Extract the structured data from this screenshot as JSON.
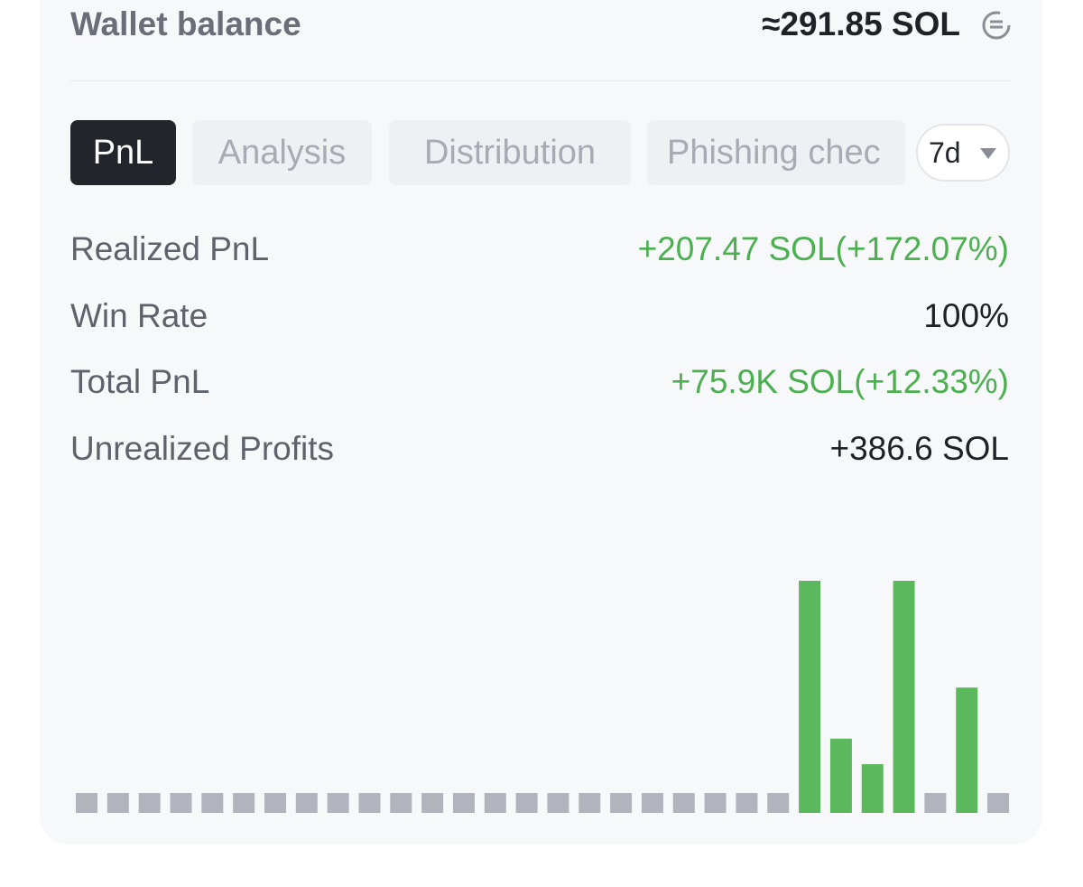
{
  "header": {
    "label": "Wallet balance",
    "value": "≈291.85 SOL"
  },
  "tabs": [
    "PnL",
    "Analysis",
    "Distribution",
    "Phishing chec"
  ],
  "period": "7d",
  "stats": [
    {
      "label": "Realized PnL",
      "value": "+207.47 SOL(+172.07%)",
      "color": "#4caf50"
    },
    {
      "label": "Win Rate",
      "value": "100%",
      "color": "#1f2126"
    },
    {
      "label": "Total PnL",
      "value": "+75.9K SOL(+12.33%)",
      "color": "#4caf50"
    },
    {
      "label": "Unrealized Profits",
      "value": "+386.6 SOL",
      "color": "#1f2126"
    }
  ],
  "chart_data": {
    "type": "bar",
    "values": [
      0,
      0,
      0,
      0,
      0,
      0,
      0,
      0,
      0,
      0,
      0,
      0,
      0,
      0,
      0,
      0,
      0,
      0,
      0,
      0,
      0,
      0,
      0,
      100,
      32,
      21,
      100,
      0,
      54,
      0
    ],
    "ylim": [
      0,
      100
    ],
    "color": "#5cb85c",
    "zero_color": "#b1b4bd"
  }
}
